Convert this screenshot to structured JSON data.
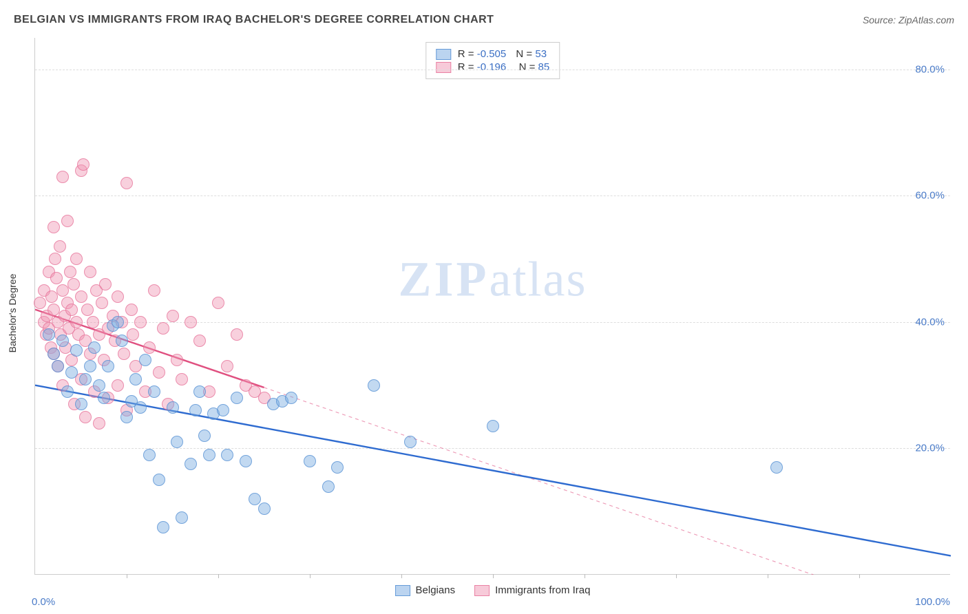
{
  "header": {
    "title": "BELGIAN VS IMMIGRANTS FROM IRAQ BACHELOR'S DEGREE CORRELATION CHART",
    "source": "Source: ZipAtlas.com"
  },
  "watermark": {
    "left": "ZIP",
    "right": "atlas"
  },
  "chart": {
    "type": "scatter",
    "ylabel": "Bachelor's Degree",
    "xlim": [
      0,
      100
    ],
    "ylim": [
      0,
      85
    ],
    "x_axis_label_left": "0.0%",
    "x_axis_label_right": "100.0%",
    "ytick_labels": [
      "20.0%",
      "40.0%",
      "60.0%",
      "80.0%"
    ],
    "ytick_values": [
      20,
      40,
      60,
      80
    ],
    "xtick_positions": [
      10,
      20,
      30,
      40,
      50,
      60,
      70,
      80,
      90
    ],
    "background_color": "#ffffff",
    "grid_color": "#dddddd",
    "axis_color": "#cccccc",
    "tick_label_color": "#4a7bc8",
    "series": {
      "blue": {
        "name": "Belgians",
        "fill": "rgba(120,170,225,0.45)",
        "stroke": "rgba(80,140,210,0.7)",
        "R": "-0.505",
        "N": "53",
        "marker_radius": 9,
        "trend": {
          "x1": 0,
          "y1": 30,
          "x2": 100,
          "y2": 3,
          "stroke": "#2e6bd0",
          "width": 2.4,
          "dash_from_x": null
        },
        "points": [
          [
            1.5,
            38
          ],
          [
            2,
            35
          ],
          [
            2.5,
            33
          ],
          [
            3,
            37
          ],
          [
            3.5,
            29
          ],
          [
            4,
            32
          ],
          [
            4.5,
            35.5
          ],
          [
            5,
            27
          ],
          [
            5.5,
            31
          ],
          [
            6,
            33
          ],
          [
            6.5,
            36
          ],
          [
            7,
            30
          ],
          [
            7.5,
            28
          ],
          [
            8,
            33
          ],
          [
            8.5,
            39.5
          ],
          [
            9,
            40
          ],
          [
            9.5,
            37
          ],
          [
            10,
            25
          ],
          [
            10.5,
            27.5
          ],
          [
            11,
            31
          ],
          [
            11.5,
            26.5
          ],
          [
            12,
            34
          ],
          [
            12.5,
            19
          ],
          [
            13,
            29
          ],
          [
            13.5,
            15
          ],
          [
            14,
            7.5
          ],
          [
            15,
            26.5
          ],
          [
            15.5,
            21
          ],
          [
            16,
            9
          ],
          [
            17,
            17.5
          ],
          [
            17.5,
            26
          ],
          [
            18,
            29
          ],
          [
            18.5,
            22
          ],
          [
            19,
            19
          ],
          [
            19.5,
            25.5
          ],
          [
            20.5,
            26
          ],
          [
            21,
            19
          ],
          [
            22,
            28
          ],
          [
            23,
            18
          ],
          [
            24,
            12
          ],
          [
            25,
            10.5
          ],
          [
            26,
            27
          ],
          [
            27,
            27.5
          ],
          [
            28,
            28
          ],
          [
            30,
            18
          ],
          [
            32,
            14
          ],
          [
            33,
            17
          ],
          [
            37,
            30
          ],
          [
            41,
            21
          ],
          [
            50,
            23.5
          ],
          [
            81,
            17
          ]
        ]
      },
      "pink": {
        "name": "Immigrants from Iraq",
        "fill": "rgba(240,150,180,0.45)",
        "stroke": "rgba(230,110,150,0.7)",
        "R": "-0.196",
        "N": "85",
        "marker_radius": 9,
        "trend": {
          "x1": 0,
          "y1": 42,
          "x2": 85,
          "y2": 0,
          "stroke": "#e05080",
          "width": 2.4,
          "dash_from_x": 25
        },
        "points": [
          [
            0.5,
            43
          ],
          [
            1,
            40
          ],
          [
            1,
            45
          ],
          [
            1.2,
            38
          ],
          [
            1.3,
            41
          ],
          [
            1.5,
            48
          ],
          [
            1.5,
            39
          ],
          [
            1.7,
            36
          ],
          [
            1.8,
            44
          ],
          [
            2,
            55
          ],
          [
            2,
            42
          ],
          [
            2,
            35
          ],
          [
            2.2,
            50
          ],
          [
            2.3,
            47
          ],
          [
            2.5,
            40
          ],
          [
            2.5,
            33
          ],
          [
            2.7,
            52
          ],
          [
            2.8,
            38
          ],
          [
            3,
            63
          ],
          [
            3,
            45
          ],
          [
            3,
            30
          ],
          [
            3.2,
            41
          ],
          [
            3.3,
            36
          ],
          [
            3.5,
            43
          ],
          [
            3.5,
            56
          ],
          [
            3.7,
            39
          ],
          [
            3.8,
            48
          ],
          [
            4,
            42
          ],
          [
            4,
            34
          ],
          [
            4.2,
            46
          ],
          [
            4.3,
            27
          ],
          [
            4.5,
            40
          ],
          [
            4.5,
            50
          ],
          [
            4.7,
            38
          ],
          [
            5,
            64
          ],
          [
            5,
            31
          ],
          [
            5,
            44
          ],
          [
            5.3,
            65
          ],
          [
            5.5,
            37
          ],
          [
            5.5,
            25
          ],
          [
            5.7,
            42
          ],
          [
            6,
            48
          ],
          [
            6,
            35
          ],
          [
            6.3,
            40
          ],
          [
            6.5,
            29
          ],
          [
            6.7,
            45
          ],
          [
            7,
            38
          ],
          [
            7,
            24
          ],
          [
            7.3,
            43
          ],
          [
            7.5,
            34
          ],
          [
            7.7,
            46
          ],
          [
            8,
            39
          ],
          [
            8,
            28
          ],
          [
            8.5,
            41
          ],
          [
            8.7,
            37
          ],
          [
            9,
            44
          ],
          [
            9,
            30
          ],
          [
            9.5,
            40
          ],
          [
            9.7,
            35
          ],
          [
            10,
            26
          ],
          [
            10,
            62
          ],
          [
            10.5,
            42
          ],
          [
            10.7,
            38
          ],
          [
            11,
            33
          ],
          [
            11.5,
            40
          ],
          [
            12,
            29
          ],
          [
            12.5,
            36
          ],
          [
            13,
            45
          ],
          [
            13.5,
            32
          ],
          [
            14,
            39
          ],
          [
            14.5,
            27
          ],
          [
            15,
            41
          ],
          [
            15.5,
            34
          ],
          [
            16,
            31
          ],
          [
            17,
            40
          ],
          [
            18,
            37
          ],
          [
            19,
            29
          ],
          [
            20,
            43
          ],
          [
            21,
            33
          ],
          [
            22,
            38
          ],
          [
            23,
            30
          ],
          [
            24,
            29
          ],
          [
            25,
            28
          ]
        ]
      }
    },
    "legend_bottom": [
      {
        "swatch": "blue",
        "label": "Belgians"
      },
      {
        "swatch": "pink",
        "label": "Immigrants from Iraq"
      }
    ]
  }
}
